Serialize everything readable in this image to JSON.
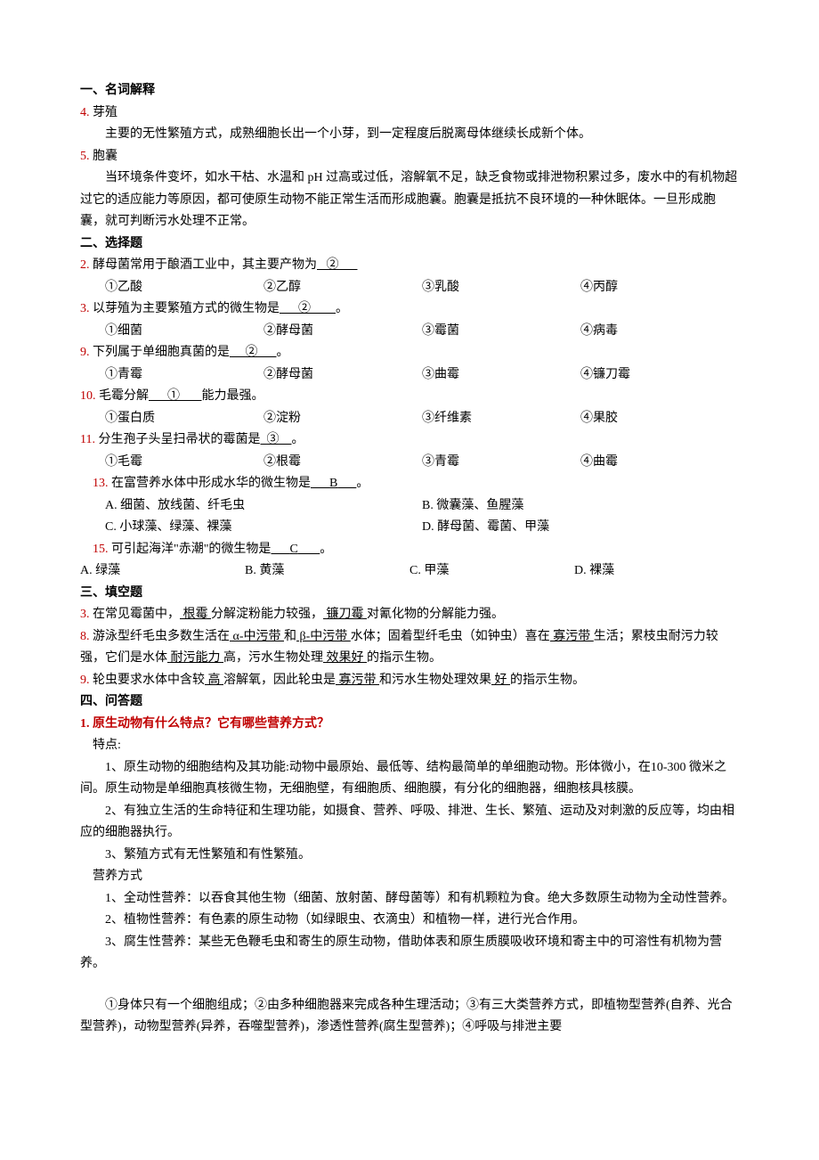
{
  "section1": {
    "title": "一、名词解释",
    "items": [
      {
        "num": "4.",
        "term": "芽殖",
        "body": "主要的无性繁殖方式，成熟细胞长出一个小芽，到一定程度后脱离母体继续长成新个体。"
      },
      {
        "num": "5.",
        "term": "胞囊",
        "body": "当环境条件变坏，如水干枯、水温和 pH 过高或过低，溶解氧不足，缺乏食物或排泄物积累过多，废水中的有机物超过它的适应能力等原因，都可使原生动物不能正常生活而形成胞囊。胞囊是抵抗不良环境的一种休眠体。一旦形成胞囊，就可判断污水处理不正常。"
      }
    ]
  },
  "section2": {
    "title": "二、选择题",
    "q2": {
      "num": "2.",
      "stem_a": "酵母菌常用于酿酒工业中，其主要产物为",
      "ans": "②",
      "opts": [
        "①乙酸",
        "②乙醇",
        "③乳酸",
        "④丙醇"
      ]
    },
    "q3": {
      "num": "3.",
      "stem_a": "以芽殖为主要繁殖方式的微生物是",
      "ans": "②",
      "tail": "。",
      "opts": [
        "①细菌",
        "②酵母菌",
        "③霉菌",
        "④病毒"
      ]
    },
    "q9": {
      "num": "9.",
      "stem_a": "下列属于单细胞真菌的是",
      "ans": "②",
      "tail": "。",
      "opts": [
        "①青霉",
        "②酵母菌",
        "③曲霉",
        "④镰刀霉"
      ]
    },
    "q10": {
      "num": "10.",
      "stem_a": "毛霉分解",
      "ans": "①",
      "stem_b": "能力最强。",
      "opts": [
        "①蛋白质",
        "②淀粉",
        "③纤维素",
        "④果胶"
      ]
    },
    "q11": {
      "num": "11.",
      "stem_a": "分生孢子头呈扫帚状的霉菌是",
      "ans": "③",
      "tail": "。",
      "opts": [
        "①毛霉",
        "②根霉",
        "③青霉",
        "④曲霉"
      ]
    },
    "q13": {
      "num": "13.",
      "stem_a": "在富营养水体中形成水华的微生物是",
      "ans": "B",
      "tail": "。",
      "opts": [
        "A. 细菌、放线菌、纤毛虫",
        "B. 微囊藻、鱼腥藻",
        "C. 小球藻、绿藻、裸藻",
        "D. 酵母菌、霉菌、甲藻"
      ]
    },
    "q15": {
      "num": "15.",
      "stem_a": "可引起海洋\"赤潮\"的微生物是",
      "ans": "C",
      "tail": "。",
      "opts": [
        "A. 绿藻",
        "B. 黄藻",
        "C. 甲藻",
        "D. 裸藻"
      ]
    }
  },
  "section3": {
    "title": "三、填空题",
    "q3": {
      "num": "3.",
      "p1": "在常见霉菌中，",
      "u1": " 根霉 ",
      "p2": "分解淀粉能力较强，",
      "u2": " 镰刀霉 ",
      "p3": "对氰化物的分解能力强。"
    },
    "q8": {
      "num": "8.",
      "p1": "游泳型纤毛虫多数生活在",
      "u1": " α-中污带 ",
      "p2": "和",
      "u2": " β-中污带 ",
      "p3": "水体；固着型纤毛虫（如钟虫）喜在",
      "u3": " 寡污带 ",
      "p4": "生活；累枝虫耐污力较强，它们是水体",
      "u4": " 耐污能力 ",
      "p5": "高，污水生物处理",
      "u5": " 效果好 ",
      "p6": "的指示生物。"
    },
    "q9": {
      "num": "9.",
      "p1": "轮虫要求水体中含较",
      "u1": " 高 ",
      "p2": "溶解氧，因此轮虫是",
      "u2": " 寡污带 ",
      "p3": "和污水生物处理效果",
      "u3": " 好 ",
      "p4": "的指示生物。"
    }
  },
  "section4": {
    "title": "四、问答题",
    "q1": {
      "num": "1.",
      "question": "原生动物有什么特点？它有哪些营养方式？",
      "traits_label": "特点:",
      "traits": [
        "1、原生动物的细胞结构及其功能:动物中最原始、最低等、结构最简单的单细胞动物。形体微小，在10-300 微米之间。原生动物是单细胞真核微生物，无细胞壁，有细胞质、细胞膜，有分化的细胞器，细胞核具核膜。",
        "2、有独立生活的生命特征和生理功能，如摄食、营养、呼吸、排泄、生长、繁殖、运动及对刺激的反应等，均由相应的细胞器执行。",
        "3、繁殖方式有无性繁殖和有性繁殖。"
      ],
      "nutrition_label": "营养方式",
      "nutrition": [
        "1、全动性营养：以吞食其他生物（细菌、放射菌、酵母菌等）和有机颗粒为食。绝大多数原生动物为全动性营养。",
        "2、植物性营养：有色素的原生动物（如绿眼虫、衣滴虫）和植物一样，进行光合作用。",
        "3、腐生性营养：某些无色鞭毛虫和寄生的原生动物，借助体表和原生质膜吸收环境和寄主中的可溶性有机物为营养。"
      ],
      "summary": "①身体只有一个细胞组成；②由多种细胞器来完成各种生理活动；③有三大类营养方式，即植物型营养(自养、光合型营养)，动物型营养(异养，吞噬型营养)，渗透性营养(腐生型营养)；④呼吸与排泄主要"
    }
  }
}
